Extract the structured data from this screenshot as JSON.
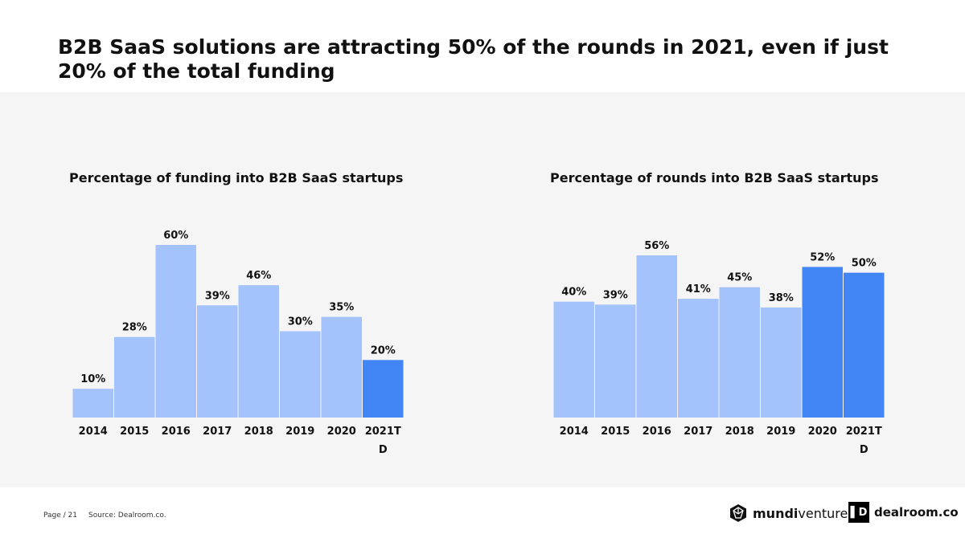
{
  "title": "B2B SaaS solutions are attracting 50% of the rounds in 2021, even if just 20% of the total funding",
  "colors": {
    "light_bar": "#a4c2fb",
    "highlight_bar": "#4285f4",
    "panel_bg": "#f5f5f5"
  },
  "chart_data": [
    {
      "type": "bar",
      "title": "Percentage of funding into B2B SaaS startups",
      "categories": [
        "2014",
        "2015",
        "2016",
        "2017",
        "2018",
        "2019",
        "2020",
        "2021TD"
      ],
      "values": [
        10,
        28,
        60,
        39,
        46,
        30,
        35,
        20
      ],
      "labels": [
        "10%",
        "28%",
        "60%",
        "39%",
        "46%",
        "30%",
        "35%",
        "20%"
      ],
      "highlight": [
        false,
        false,
        false,
        false,
        false,
        false,
        false,
        true
      ],
      "ylim": [
        0,
        60
      ],
      "xlabel": "",
      "ylabel": ""
    },
    {
      "type": "bar",
      "title": "Percentage of rounds into B2B SaaS startups",
      "categories": [
        "2014",
        "2015",
        "2016",
        "2017",
        "2018",
        "2019",
        "2020",
        "2021TD"
      ],
      "values": [
        40,
        39,
        56,
        41,
        45,
        38,
        52,
        50
      ],
      "labels": [
        "40%",
        "39%",
        "56%",
        "41%",
        "45%",
        "38%",
        "52%",
        "50%"
      ],
      "highlight": [
        false,
        false,
        false,
        false,
        false,
        false,
        true,
        true
      ],
      "ylim": [
        0,
        56
      ],
      "xlabel": "",
      "ylabel": ""
    }
  ],
  "footer": {
    "page": "Page / 21",
    "source": "Source: Dealroom.co."
  },
  "logos": {
    "mundi_bold": "mundi",
    "mundi_light": "ventures",
    "mundi_icon": "mundi-ventures-logo-icon",
    "dealroom_text": "dealroom.co",
    "dealroom_mark": "▌D",
    "dealroom_icon": "dealroom-logo-icon"
  }
}
